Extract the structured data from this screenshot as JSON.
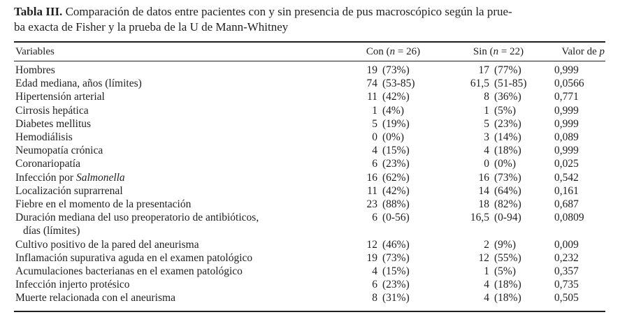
{
  "caption": {
    "label": "Tabla III.",
    "line1": "Comparación de datos entre pacientes con y sin presencia de pus macroscópico según la prue-",
    "line2": "ba exacta de Fisher y la prueba de la U de Mann-Whitney"
  },
  "table": {
    "header": {
      "variables": "Variables",
      "con": {
        "pre": "Con (",
        "it": "n",
        "post": " = 26)"
      },
      "sin": {
        "pre": "Sin (",
        "it": "n",
        "post": " = 22)"
      },
      "p": {
        "pre": "Valor de ",
        "it": "p"
      }
    },
    "rows": [
      {
        "label": "Hombres",
        "con": {
          "n": "19",
          "detail": "(73%)"
        },
        "sin": {
          "n": "17",
          "detail": "(77%)"
        },
        "p": "0,999"
      },
      {
        "label": "Edad mediana, años (límites)",
        "con": {
          "n": "74",
          "detail": "(53-85)"
        },
        "sin": {
          "n": "61,5",
          "detail": "(51-85)"
        },
        "p": "0,0566"
      },
      {
        "label": "Hipertensión arterial",
        "con": {
          "n": "11",
          "detail": "(42%)"
        },
        "sin": {
          "n": "8",
          "detail": "(36%)"
        },
        "p": "0,771"
      },
      {
        "label": "Cirrosis hepática",
        "con": {
          "n": "1",
          "detail": "(4%)"
        },
        "sin": {
          "n": "1",
          "detail": "(5%)"
        },
        "p": "0,999"
      },
      {
        "label": "Diabetes mellitus",
        "con": {
          "n": "5",
          "detail": "(19%)"
        },
        "sin": {
          "n": "5",
          "detail": "(23%)"
        },
        "p": "0,999"
      },
      {
        "label": "Hemodiálisis",
        "con": {
          "n": "0",
          "detail": "(0%)"
        },
        "sin": {
          "n": "3",
          "detail": "(14%)"
        },
        "p": "0,089"
      },
      {
        "label": "Neumopatía crónica",
        "con": {
          "n": "4",
          "detail": "(15%)"
        },
        "sin": {
          "n": "4",
          "detail": "(18%)"
        },
        "p": "0,999"
      },
      {
        "label": "Coronariopatía",
        "con": {
          "n": "6",
          "detail": "(23%)"
        },
        "sin": {
          "n": "0",
          "detail": "(0%)"
        },
        "p": "0,025"
      },
      {
        "label": "Infección por ",
        "label_it": "Salmonella",
        "con": {
          "n": "16",
          "detail": "(62%)"
        },
        "sin": {
          "n": "16",
          "detail": "(73%)"
        },
        "p": "0,542"
      },
      {
        "label": "Localización suprarrenal",
        "con": {
          "n": "11",
          "detail": "(42%)"
        },
        "sin": {
          "n": "14",
          "detail": "(64%)"
        },
        "p": "0,161"
      },
      {
        "label": "Fiebre en el momento de la presentación",
        "con": {
          "n": "23",
          "detail": "(88%)"
        },
        "sin": {
          "n": "18",
          "detail": "(82%)"
        },
        "p": "0,687"
      },
      {
        "label": "Duración mediana del uso preoperatorio de antibióticos,",
        "label_line2": "días (límites)",
        "con": {
          "n": "6",
          "detail": "(0-56)"
        },
        "sin": {
          "n": "16,5",
          "detail": "(0-94)"
        },
        "p": "0,0809"
      },
      {
        "label": "Cultivo positivo de la pared del aneurisma",
        "con": {
          "n": "12",
          "detail": "(46%)"
        },
        "sin": {
          "n": "2",
          "detail": "(9%)"
        },
        "p": "0,009"
      },
      {
        "label": "Inflamación supurativa aguda en el examen patológico",
        "con": {
          "n": "19",
          "detail": "(73%)"
        },
        "sin": {
          "n": "12",
          "detail": "(55%)"
        },
        "p": "0,232"
      },
      {
        "label": "Acumulaciones bacterianas en el examen patológico",
        "con": {
          "n": "4",
          "detail": "(15%)"
        },
        "sin": {
          "n": "1",
          "detail": "(5%)"
        },
        "p": "0,357"
      },
      {
        "label": "Infección injerto protésico",
        "con": {
          "n": "6",
          "detail": "(23%)"
        },
        "sin": {
          "n": "4",
          "detail": "(18%)"
        },
        "p": "0,735"
      },
      {
        "label": "Muerte relacionada con el aneurisma",
        "con": {
          "n": "8",
          "detail": "(31%)"
        },
        "sin": {
          "n": "4",
          "detail": "(18%)"
        },
        "p": "0,505"
      }
    ]
  },
  "colors": {
    "text": "#1f1f1f",
    "rule": "#1f1f1f",
    "background": "#ffffff"
  }
}
